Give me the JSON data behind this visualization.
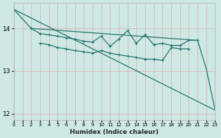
{
  "xlabel": "Humidex (Indice chaleur)",
  "bg_color": "#cde8e5",
  "grid_color": "#b8d8d5",
  "line_color": "#1e7268",
  "xlim": [
    0,
    23
  ],
  "ylim": [
    11.85,
    14.6
  ],
  "yticks": [
    12,
    13,
    14
  ],
  "xticks": [
    0,
    1,
    2,
    3,
    4,
    5,
    6,
    7,
    8,
    9,
    10,
    11,
    12,
    13,
    14,
    15,
    16,
    17,
    18,
    19,
    20,
    21,
    22,
    23
  ],
  "series": [
    {
      "x": [
        0,
        23
      ],
      "y": [
        14.45,
        12.08
      ],
      "marker": false,
      "lw": 0.9
    },
    {
      "x": [
        0,
        2,
        21,
        22,
        23
      ],
      "y": [
        14.45,
        14.0,
        13.72,
        13.05,
        12.08
      ],
      "marker": false,
      "lw": 0.9
    },
    {
      "x": [
        2,
        3,
        4,
        5,
        6,
        7,
        8,
        9,
        10,
        11,
        12,
        13,
        14,
        15,
        16,
        17,
        18,
        19,
        20,
        21
      ],
      "y": [
        14.0,
        13.88,
        13.85,
        13.82,
        13.78,
        13.75,
        13.7,
        13.68,
        13.82,
        13.58,
        13.75,
        13.95,
        13.65,
        13.85,
        13.62,
        13.65,
        13.6,
        13.6,
        13.72,
        13.72
      ],
      "marker": true,
      "lw": 0.9
    },
    {
      "x": [
        3,
        4,
        5,
        6,
        7,
        8,
        9,
        10,
        11,
        12,
        13,
        14,
        15,
        16,
        17,
        18,
        19,
        20
      ],
      "y": [
        13.65,
        13.62,
        13.55,
        13.52,
        13.48,
        13.45,
        13.42,
        13.48,
        13.42,
        13.38,
        13.35,
        13.32,
        13.28,
        13.28,
        13.25,
        13.55,
        13.52,
        13.52
      ],
      "marker": true,
      "lw": 0.9
    }
  ]
}
